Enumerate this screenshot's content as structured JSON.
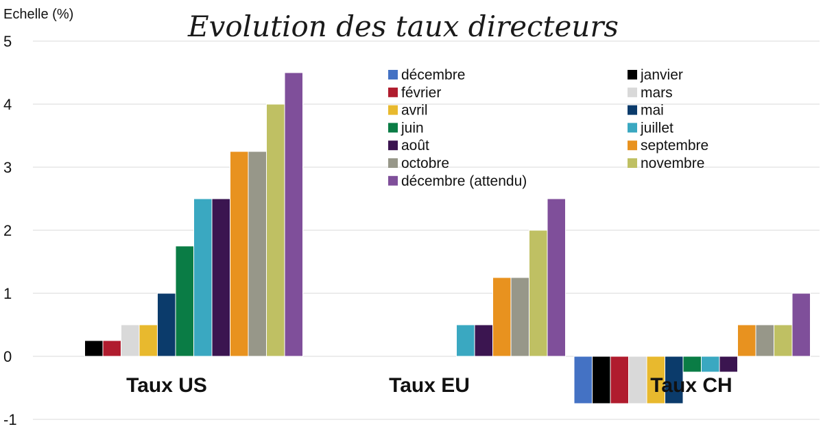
{
  "chart_data": {
    "type": "bar",
    "title": "Evolution des taux directeurs",
    "ylabel": "Echelle (%)",
    "xlabel": "",
    "ylim": [
      -1,
      5
    ],
    "yticks": [
      "-1",
      "0",
      "1",
      "2",
      "3",
      "4",
      "5"
    ],
    "grid": true,
    "legend_position": "top-right",
    "categories": [
      "Taux US",
      "Taux EU",
      "Taux CH"
    ],
    "series": [
      {
        "name": "décembre",
        "color": "#4472C4",
        "values": [
          0,
          0,
          -0.75
        ]
      },
      {
        "name": "janvier",
        "color": "#000000",
        "values": [
          0.25,
          0,
          -0.75
        ]
      },
      {
        "name": "février",
        "color": "#B01C2E",
        "values": [
          0.25,
          0,
          -0.75
        ]
      },
      {
        "name": "mars",
        "color": "#D9D9D9",
        "values": [
          0.5,
          0,
          -0.75
        ]
      },
      {
        "name": "avril",
        "color": "#E8B92E",
        "values": [
          0.5,
          0,
          -0.75
        ]
      },
      {
        "name": "mai",
        "color": "#0B3B6B",
        "values": [
          1.0,
          0,
          -0.75
        ]
      },
      {
        "name": "juin",
        "color": "#0A7C45",
        "values": [
          1.75,
          0,
          -0.25
        ]
      },
      {
        "name": "juillet",
        "color": "#3AA8C1",
        "values": [
          2.5,
          0.5,
          -0.25
        ]
      },
      {
        "name": "août",
        "color": "#3B1550",
        "values": [
          2.5,
          0.5,
          -0.25
        ]
      },
      {
        "name": "septembre",
        "color": "#E8921F",
        "values": [
          3.25,
          1.25,
          0.5
        ]
      },
      {
        "name": "octobre",
        "color": "#979789",
        "values": [
          3.25,
          1.25,
          0.5
        ]
      },
      {
        "name": "novembre",
        "color": "#BFC063",
        "values": [
          4.0,
          2.0,
          0.5
        ]
      },
      {
        "name": "décembre (attendu)",
        "color": "#7F4F9A",
        "values": [
          4.5,
          2.5,
          1.0
        ]
      }
    ]
  }
}
